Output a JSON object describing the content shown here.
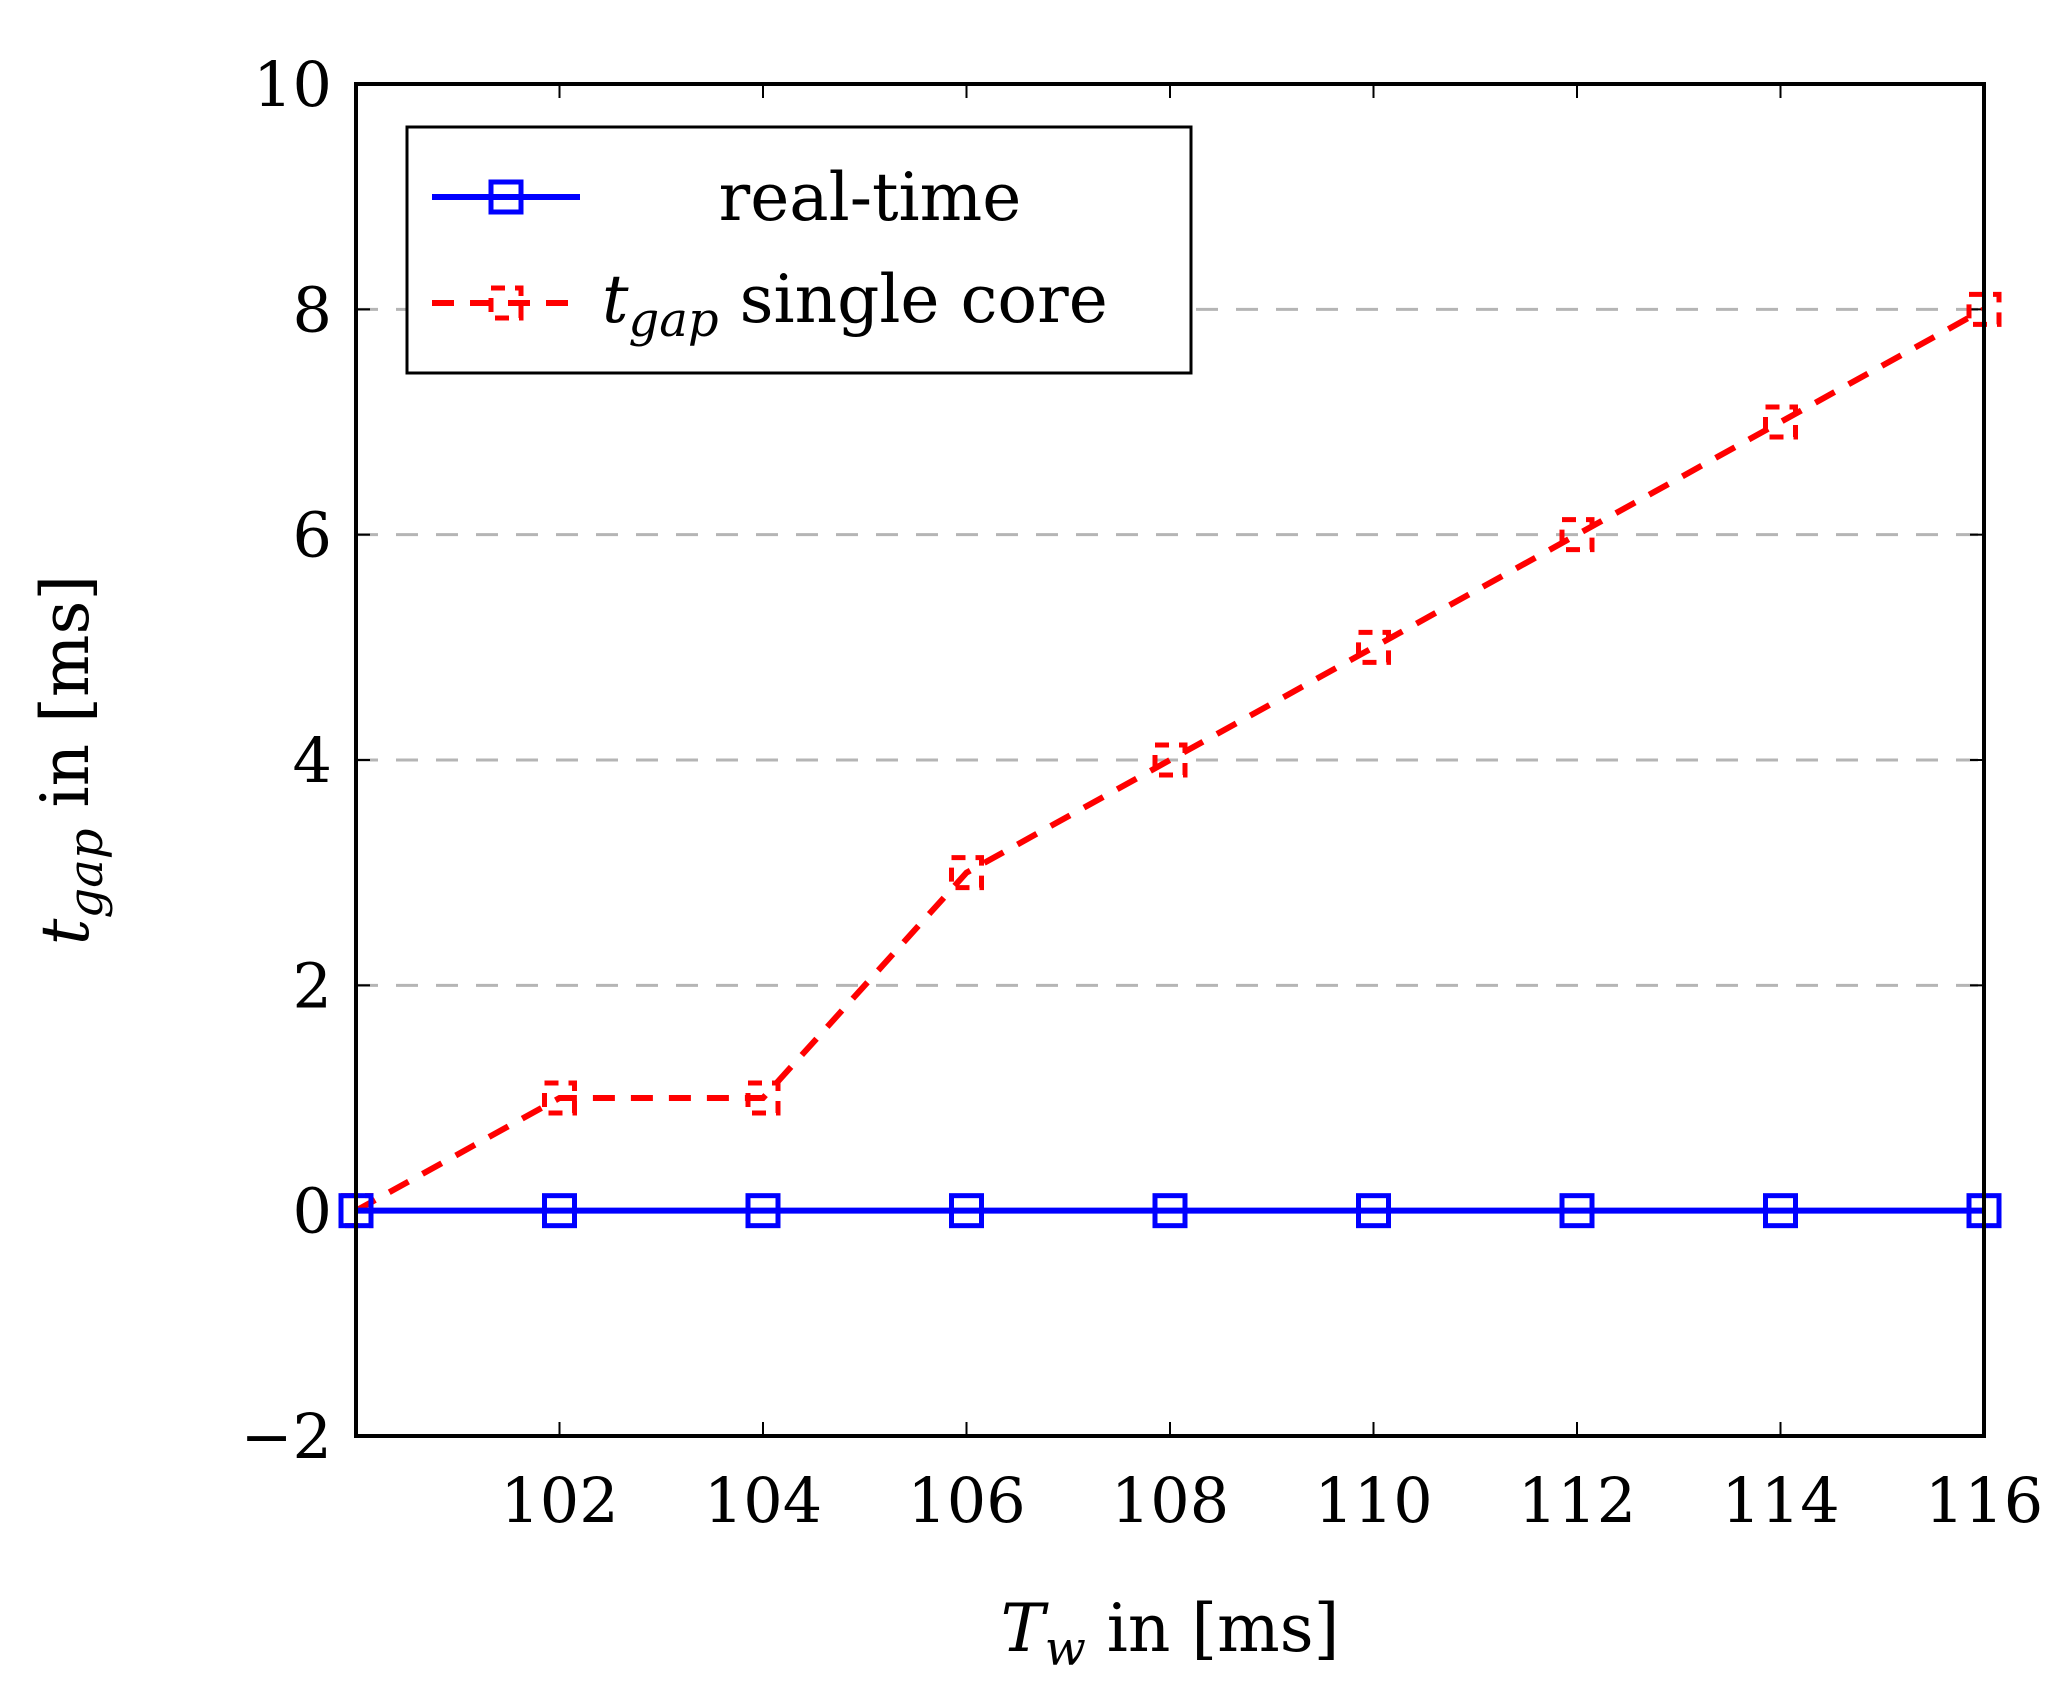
{
  "chart_data": {
    "type": "line",
    "title": "",
    "x": [
      100,
      102,
      104,
      106,
      108,
      110,
      112,
      114,
      116
    ],
    "xlim": [
      100,
      116
    ],
    "ylim": [
      -2,
      10
    ],
    "xticks": [
      102,
      104,
      106,
      108,
      110,
      112,
      114,
      116
    ],
    "yticks": [
      -2,
      0,
      2,
      4,
      6,
      8,
      10
    ],
    "xtick_labels": [
      "102",
      "104",
      "106",
      "108",
      "110",
      "112",
      "114",
      "116"
    ],
    "ytick_labels": [
      "−2",
      "0",
      "2",
      "4",
      "6",
      "8",
      "10"
    ],
    "grid": "horizontal dashed",
    "legend_position": "top-left",
    "xlabel": {
      "main": "T",
      "sub": "w",
      "rest": " in [ms]"
    },
    "ylabel": {
      "main": "t",
      "sub": "gap",
      "rest": " in [ms]"
    },
    "series": [
      {
        "name": "real-time",
        "legend_label": "real-time",
        "color": "#0000ff",
        "line_style": "solid",
        "marker": "square",
        "values": [
          0,
          0,
          0,
          0,
          0,
          0,
          0,
          0,
          0
        ]
      },
      {
        "name": "t_gap single core",
        "legend_label": {
          "main": "t",
          "sub": "gap",
          "rest": " single core"
        },
        "color": "#ff0000",
        "line_style": "dashed",
        "marker": "square",
        "values": [
          0,
          1,
          1,
          3,
          4,
          5,
          6,
          7,
          8
        ]
      }
    ]
  }
}
